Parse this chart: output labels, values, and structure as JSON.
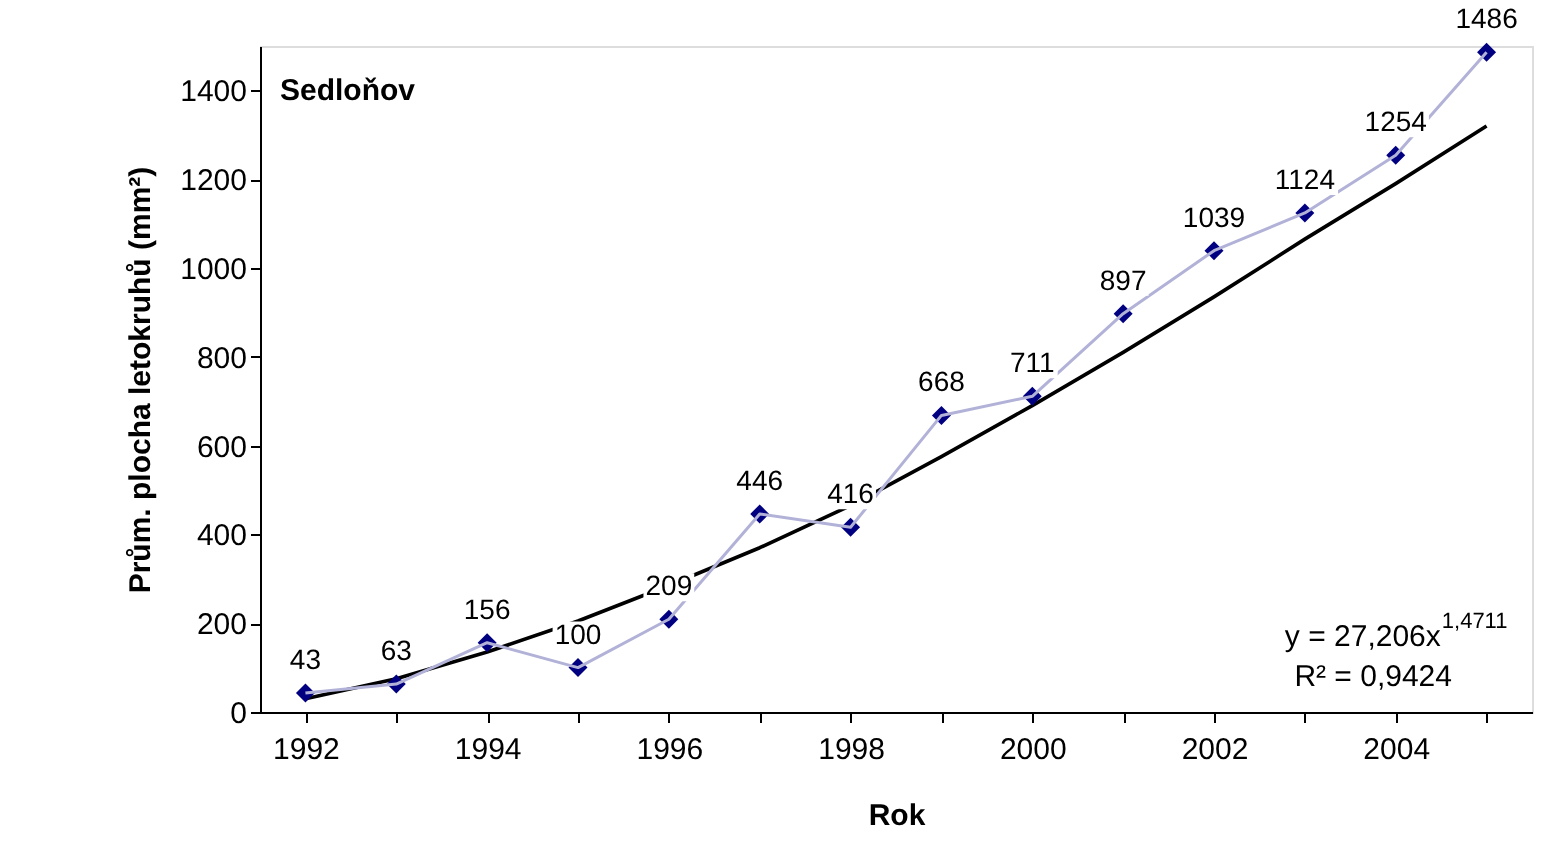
{
  "chart_data": {
    "type": "line",
    "title": "Sedloňov",
    "xlabel": "Rok",
    "ylabel": "Prům. plocha letokruhů (mm²)",
    "x": [
      1992,
      1993,
      1994,
      1995,
      1996,
      1997,
      1998,
      1999,
      2000,
      2001,
      2002,
      2003,
      2004,
      2005
    ],
    "series": [
      {
        "color": "#000080",
        "marker": "diamond",
        "values": [
          43,
          63,
          156,
          100,
          209,
          446,
          416,
          668,
          711,
          897,
          1039,
          1124,
          1254,
          1486
        ],
        "value_labels": [
          "43",
          "63",
          "156",
          "100",
          "209",
          "446",
          "416",
          "668",
          "711",
          "897",
          "1039",
          "1124",
          "1254",
          "1486"
        ]
      },
      {
        "color": "#000000",
        "marker": "none",
        "x": [
          1992,
          1993,
          1994,
          1995,
          1996,
          1997,
          1998,
          1999,
          2000,
          2001,
          2002,
          2003,
          2004,
          2005
        ],
        "values": [
          30,
          75,
          135,
          205,
          285,
          370,
          465,
          575,
          690,
          810,
          935,
          1065,
          1190,
          1320
        ]
      }
    ],
    "xlim": [
      1991.5,
      2005.5
    ],
    "xticks": [
      1992,
      {
        "value": 1993,
        "label": null
      },
      1994,
      {
        "value": 1995,
        "label": null
      },
      1996,
      {
        "value": 1997,
        "label": null
      },
      1998,
      {
        "value": 1999,
        "label": null
      },
      2000,
      {
        "value": 2001,
        "label": null
      },
      2002,
      {
        "value": 2003,
        "label": null
      },
      2004,
      {
        "value": 2005,
        "label": null
      }
    ],
    "ylim": [
      0,
      1500
    ],
    "yticks": [
      0,
      200,
      400,
      600,
      800,
      1000,
      1200,
      1400
    ],
    "grid": false,
    "annotations": [
      "y = 27,206x$^{1,4711}$",
      "R² = 0,9424"
    ]
  }
}
